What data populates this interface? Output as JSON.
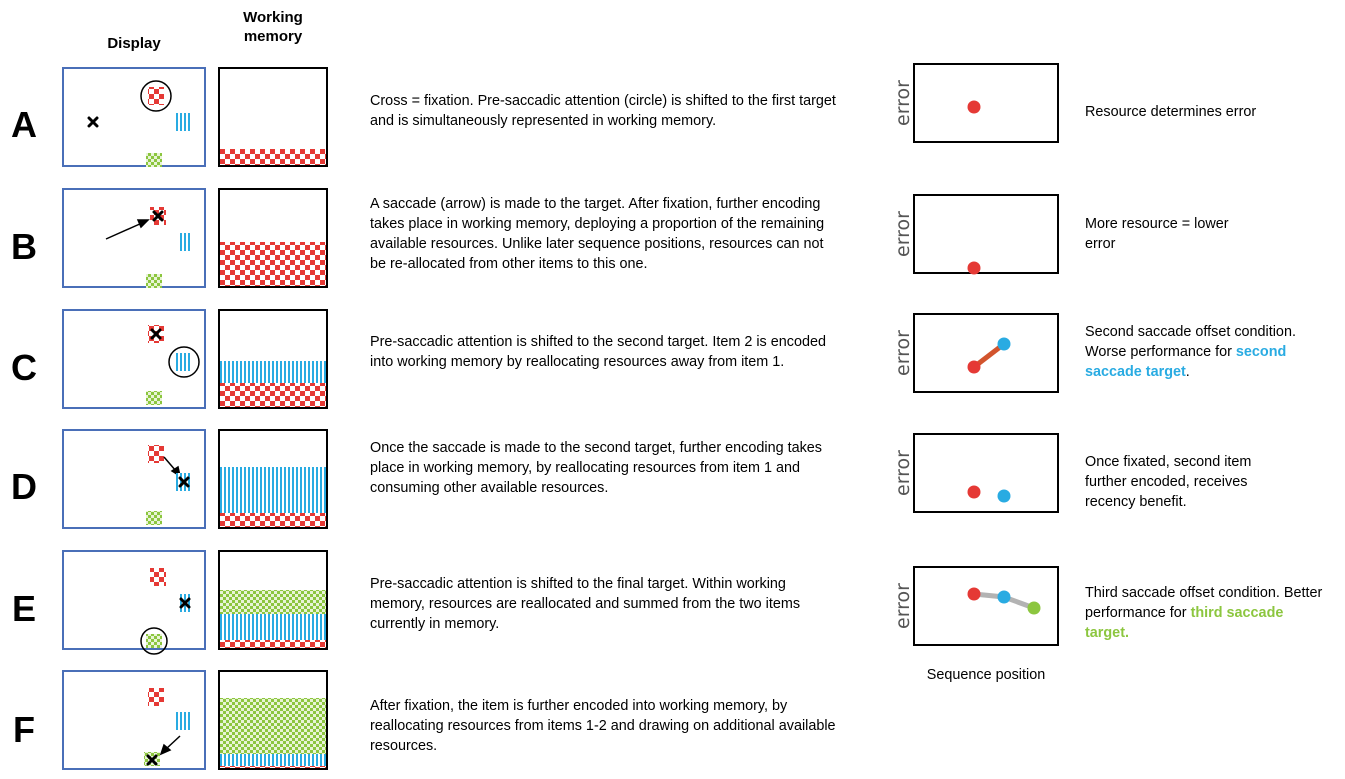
{
  "headers": {
    "display": "Display",
    "working_memory_line1": "Working",
    "working_memory_line2": "memory"
  },
  "colors": {
    "red": "#e53935",
    "blue": "#29abe2",
    "green": "#8cc63f",
    "line_red": "#d2542d",
    "line_gray": "#b3b3b3"
  },
  "rows": [
    {
      "letter": "A",
      "description": "Cross = fixation. Pre-saccadic attention (circle) is shifted to the first target and is simultaneously represented in working memory.",
      "note": "Resource determines error"
    },
    {
      "letter": "B",
      "description": "A saccade (arrow) is made to the target. After fixation, further encoding takes place in working memory, deploying a proportion of the remaining available resources. Unlike later sequence positions, resources can not be re-allocated from other items to this one.",
      "note": "More resource = lower error"
    },
    {
      "letter": "C",
      "description": "Pre-saccadic attention is shifted to the second target. Item 2 is encoded into working memory by reallocating resources away from item 1.",
      "note_pre": "Second saccade offset condition. Worse performance for ",
      "note_highlight": "second saccade target",
      "note_post": "."
    },
    {
      "letter": "D",
      "description": "Once the saccade is made to the second target, further encoding takes place in working memory, by reallocating resources from item 1 and consuming other available resources.",
      "note": "Once fixated, second item further encoded, receives recency benefit."
    },
    {
      "letter": "E",
      "description": "Pre-saccadic attention is shifted to the final target. Within working memory, resources are reallocated and summed from the two items currently in memory.",
      "note_pre": "Third saccade offset condition. Better performance for ",
      "note_highlight": "third saccade target."
    },
    {
      "letter": "F",
      "description": "After fixation, the item is further encoded into working memory, by reallocating resources from items 1-2 and drawing on additional available resources."
    }
  ],
  "plot_ylabel": "error",
  "plot_xlabel": "Sequence position"
}
